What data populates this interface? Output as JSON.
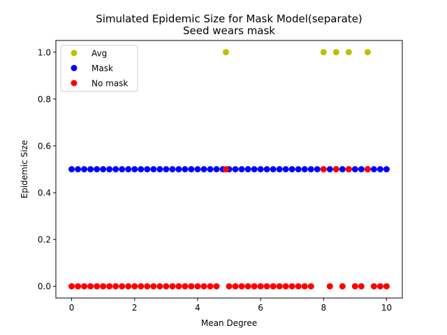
{
  "chart_data": {
    "type": "scatter",
    "title": "Simulated Epidemic Size for Mask Model(separate)",
    "subtitle": "Seed wears mask",
    "xlabel": "Mean Degree",
    "ylabel": "Epidemic Size",
    "xlim": [
      -0.5,
      10.5
    ],
    "ylim": [
      -0.05,
      1.05
    ],
    "xticks": [
      0,
      2,
      4,
      6,
      8,
      10
    ],
    "yticks": [
      0.0,
      0.2,
      0.4,
      0.6,
      0.8,
      1.0
    ],
    "xtick_labels": [
      "0",
      "2",
      "4",
      "6",
      "8",
      "10"
    ],
    "ytick_labels": [
      "0.0",
      "0.2",
      "0.4",
      "0.6",
      "0.8",
      "1.0"
    ],
    "grid": false,
    "legend_position": "top-left",
    "series": [
      {
        "name": "Avg",
        "color": "#bfbf00",
        "points": [
          {
            "x": 4.9,
            "y": 1.0
          },
          {
            "x": 8.0,
            "y": 1.0
          },
          {
            "x": 8.4,
            "y": 1.0
          },
          {
            "x": 8.8,
            "y": 1.0
          },
          {
            "x": 9.4,
            "y": 1.0
          }
        ]
      },
      {
        "name": "Mask",
        "color": "#0000ff",
        "points": [
          {
            "x": 0.0,
            "y": 0.5
          },
          {
            "x": 0.2,
            "y": 0.5
          },
          {
            "x": 0.4,
            "y": 0.5
          },
          {
            "x": 0.6,
            "y": 0.5
          },
          {
            "x": 0.8,
            "y": 0.5
          },
          {
            "x": 1.0,
            "y": 0.5
          },
          {
            "x": 1.2,
            "y": 0.5
          },
          {
            "x": 1.4,
            "y": 0.5
          },
          {
            "x": 1.6,
            "y": 0.5
          },
          {
            "x": 1.8,
            "y": 0.5
          },
          {
            "x": 2.0,
            "y": 0.5
          },
          {
            "x": 2.2,
            "y": 0.5
          },
          {
            "x": 2.4,
            "y": 0.5
          },
          {
            "x": 2.6,
            "y": 0.5
          },
          {
            "x": 2.8,
            "y": 0.5
          },
          {
            "x": 3.0,
            "y": 0.5
          },
          {
            "x": 3.2,
            "y": 0.5
          },
          {
            "x": 3.4,
            "y": 0.5
          },
          {
            "x": 3.6,
            "y": 0.5
          },
          {
            "x": 3.8,
            "y": 0.5
          },
          {
            "x": 4.0,
            "y": 0.5
          },
          {
            "x": 4.2,
            "y": 0.5
          },
          {
            "x": 4.4,
            "y": 0.5
          },
          {
            "x": 4.6,
            "y": 0.5
          },
          {
            "x": 4.8,
            "y": 0.5
          },
          {
            "x": 5.0,
            "y": 0.5
          },
          {
            "x": 5.2,
            "y": 0.5
          },
          {
            "x": 5.4,
            "y": 0.5
          },
          {
            "x": 5.6,
            "y": 0.5
          },
          {
            "x": 5.8,
            "y": 0.5
          },
          {
            "x": 6.0,
            "y": 0.5
          },
          {
            "x": 6.2,
            "y": 0.5
          },
          {
            "x": 6.4,
            "y": 0.5
          },
          {
            "x": 6.6,
            "y": 0.5
          },
          {
            "x": 6.8,
            "y": 0.5
          },
          {
            "x": 7.0,
            "y": 0.5
          },
          {
            "x": 7.2,
            "y": 0.5
          },
          {
            "x": 7.4,
            "y": 0.5
          },
          {
            "x": 7.6,
            "y": 0.5
          },
          {
            "x": 7.8,
            "y": 0.5
          },
          {
            "x": 8.0,
            "y": 0.5
          },
          {
            "x": 8.2,
            "y": 0.5
          },
          {
            "x": 8.4,
            "y": 0.5
          },
          {
            "x": 8.6,
            "y": 0.5
          },
          {
            "x": 8.8,
            "y": 0.5
          },
          {
            "x": 9.0,
            "y": 0.5
          },
          {
            "x": 9.2,
            "y": 0.5
          },
          {
            "x": 9.4,
            "y": 0.5
          },
          {
            "x": 9.6,
            "y": 0.5
          },
          {
            "x": 9.8,
            "y": 0.5
          },
          {
            "x": 10.0,
            "y": 0.5
          }
        ]
      },
      {
        "name": "No mask",
        "color": "#ff0000",
        "points": [
          {
            "x": 0.0,
            "y": 0.0
          },
          {
            "x": 0.2,
            "y": 0.0
          },
          {
            "x": 0.4,
            "y": 0.0
          },
          {
            "x": 0.6,
            "y": 0.0
          },
          {
            "x": 0.8,
            "y": 0.0
          },
          {
            "x": 1.0,
            "y": 0.0
          },
          {
            "x": 1.2,
            "y": 0.0
          },
          {
            "x": 1.4,
            "y": 0.0
          },
          {
            "x": 1.6,
            "y": 0.0
          },
          {
            "x": 1.8,
            "y": 0.0
          },
          {
            "x": 2.0,
            "y": 0.0
          },
          {
            "x": 2.2,
            "y": 0.0
          },
          {
            "x": 2.4,
            "y": 0.0
          },
          {
            "x": 2.6,
            "y": 0.0
          },
          {
            "x": 2.8,
            "y": 0.0
          },
          {
            "x": 3.0,
            "y": 0.0
          },
          {
            "x": 3.2,
            "y": 0.0
          },
          {
            "x": 3.4,
            "y": 0.0
          },
          {
            "x": 3.6,
            "y": 0.0
          },
          {
            "x": 3.8,
            "y": 0.0
          },
          {
            "x": 4.0,
            "y": 0.0
          },
          {
            "x": 4.2,
            "y": 0.0
          },
          {
            "x": 4.4,
            "y": 0.0
          },
          {
            "x": 4.6,
            "y": 0.0
          },
          {
            "x": 4.9,
            "y": 0.5
          },
          {
            "x": 5.0,
            "y": 0.0
          },
          {
            "x": 5.2,
            "y": 0.0
          },
          {
            "x": 5.4,
            "y": 0.0
          },
          {
            "x": 5.6,
            "y": 0.0
          },
          {
            "x": 5.8,
            "y": 0.0
          },
          {
            "x": 6.0,
            "y": 0.0
          },
          {
            "x": 6.2,
            "y": 0.0
          },
          {
            "x": 6.4,
            "y": 0.0
          },
          {
            "x": 6.6,
            "y": 0.0
          },
          {
            "x": 6.8,
            "y": 0.0
          },
          {
            "x": 7.0,
            "y": 0.0
          },
          {
            "x": 7.2,
            "y": 0.0
          },
          {
            "x": 7.4,
            "y": 0.0
          },
          {
            "x": 7.6,
            "y": 0.0
          },
          {
            "x": 8.0,
            "y": 0.5
          },
          {
            "x": 8.2,
            "y": 0.0
          },
          {
            "x": 8.4,
            "y": 0.5
          },
          {
            "x": 8.6,
            "y": 0.0
          },
          {
            "x": 8.8,
            "y": 0.5
          },
          {
            "x": 9.0,
            "y": 0.0
          },
          {
            "x": 9.2,
            "y": 0.0
          },
          {
            "x": 9.4,
            "y": 0.5
          },
          {
            "x": 9.6,
            "y": 0.0
          },
          {
            "x": 9.8,
            "y": 0.0
          },
          {
            "x": 10.0,
            "y": 0.0
          }
        ]
      }
    ]
  }
}
